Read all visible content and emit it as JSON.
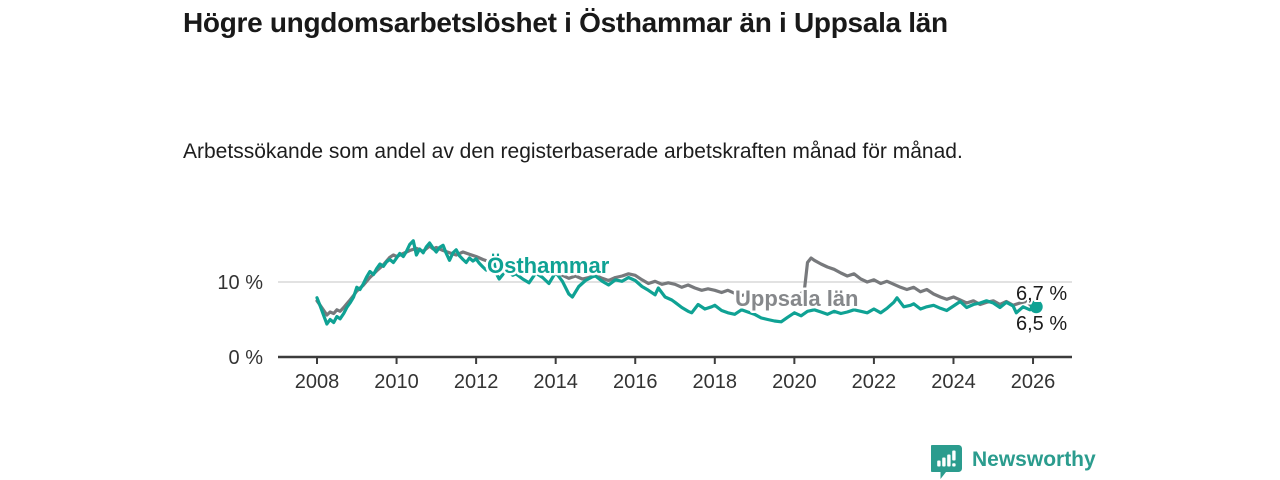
{
  "header": {
    "title": "Högre ungdomsarbetslöshet i Östhammar än i Uppsala län",
    "subtitle": "Arbetssökande som andel av den registerbaserade arbetskraften månad för månad."
  },
  "branding": {
    "logo_text": "Newsworthy",
    "logo_color": "#2b9c8e",
    "logo_icon": "bar-chart-speech-bubble-icon"
  },
  "colors": {
    "focus_series": "#0fa294",
    "reference_series": "#77797c",
    "reference_label": "#86888b",
    "axis": "#3c3c3c",
    "tick_text": "#333333",
    "gridline": "#d9d9d9",
    "end_label_text": "#1b1b1b"
  },
  "chart_data": {
    "type": "line",
    "title": "Högre ungdomsarbetslöshet i Östhammar än i Uppsala län",
    "subtitle": "Arbetssökande som andel av den registerbaserade arbetskraften månad för månad.",
    "x_axis": {
      "ticks": [
        2008,
        2010,
        2012,
        2014,
        2016,
        2018,
        2020,
        2022,
        2024,
        2026
      ],
      "range": [
        2007.0,
        2027.0
      ],
      "unit": "year, monthly data"
    },
    "y_axis": {
      "tick_values": [
        0,
        10
      ],
      "tick_labels": [
        "0 %",
        "10 %"
      ],
      "range": [
        0,
        19
      ],
      "gridlines": [
        10
      ],
      "unit": "%"
    },
    "legend": "inline labels on lines",
    "series": [
      {
        "name": "Östhammar",
        "color": "#0fa294",
        "end_label": "6,7 %",
        "end_value": 6.7,
        "end_dot": true,
        "points": [
          [
            2008.0,
            7.9
          ],
          [
            2008.08,
            6.8
          ],
          [
            2008.17,
            5.5
          ],
          [
            2008.25,
            4.4
          ],
          [
            2008.33,
            5.0
          ],
          [
            2008.42,
            4.6
          ],
          [
            2008.5,
            5.4
          ],
          [
            2008.58,
            5.1
          ],
          [
            2008.67,
            5.8
          ],
          [
            2008.75,
            6.6
          ],
          [
            2008.83,
            7.2
          ],
          [
            2008.92,
            8.0
          ],
          [
            2009.0,
            9.3
          ],
          [
            2009.08,
            9.0
          ],
          [
            2009.17,
            9.8
          ],
          [
            2009.25,
            10.7
          ],
          [
            2009.33,
            11.4
          ],
          [
            2009.42,
            11.0
          ],
          [
            2009.5,
            11.8
          ],
          [
            2009.58,
            12.4
          ],
          [
            2009.67,
            12.1
          ],
          [
            2009.75,
            12.7
          ],
          [
            2009.83,
            13.0
          ],
          [
            2009.92,
            12.6
          ],
          [
            2010.0,
            13.2
          ],
          [
            2010.08,
            13.8
          ],
          [
            2010.17,
            13.4
          ],
          [
            2010.25,
            14.1
          ],
          [
            2010.33,
            15.0
          ],
          [
            2010.42,
            15.5
          ],
          [
            2010.5,
            13.6
          ],
          [
            2010.58,
            14.4
          ],
          [
            2010.67,
            13.9
          ],
          [
            2010.75,
            14.7
          ],
          [
            2010.83,
            15.2
          ],
          [
            2010.92,
            14.5
          ],
          [
            2011.0,
            14.0
          ],
          [
            2011.08,
            14.6
          ],
          [
            2011.17,
            14.9
          ],
          [
            2011.25,
            13.8
          ],
          [
            2011.33,
            12.9
          ],
          [
            2011.42,
            13.9
          ],
          [
            2011.5,
            14.3
          ],
          [
            2011.58,
            13.5
          ],
          [
            2011.67,
            13.0
          ],
          [
            2011.75,
            12.6
          ],
          [
            2011.83,
            13.2
          ],
          [
            2011.92,
            12.8
          ],
          [
            2012.0,
            13.1
          ],
          [
            2012.08,
            12.5
          ],
          [
            2012.17,
            12.0
          ],
          [
            2012.25,
            11.6
          ],
          [
            2012.33,
            12.4
          ],
          [
            2012.42,
            13.5
          ],
          [
            2012.5,
            11.2
          ],
          [
            2012.58,
            10.4
          ],
          [
            2012.67,
            11.0
          ],
          [
            2012.75,
            11.8
          ],
          [
            2012.83,
            11.3
          ],
          [
            2012.92,
            10.9
          ],
          [
            2013.0,
            11.1
          ],
          [
            2013.17,
            10.4
          ],
          [
            2013.33,
            9.9
          ],
          [
            2013.5,
            11.2
          ],
          [
            2013.67,
            10.6
          ],
          [
            2013.83,
            9.8
          ],
          [
            2014.0,
            11.3
          ],
          [
            2014.17,
            10.1
          ],
          [
            2014.33,
            8.4
          ],
          [
            2014.42,
            8.0
          ],
          [
            2014.58,
            9.4
          ],
          [
            2014.75,
            10.2
          ],
          [
            2014.92,
            10.7
          ],
          [
            2015.0,
            10.8
          ],
          [
            2015.17,
            10.1
          ],
          [
            2015.33,
            9.6
          ],
          [
            2015.5,
            10.3
          ],
          [
            2015.67,
            10.1
          ],
          [
            2015.83,
            10.6
          ],
          [
            2016.0,
            10.2
          ],
          [
            2016.17,
            9.4
          ],
          [
            2016.33,
            8.9
          ],
          [
            2016.5,
            8.3
          ],
          [
            2016.58,
            9.2
          ],
          [
            2016.75,
            8.0
          ],
          [
            2016.92,
            7.6
          ],
          [
            2017.0,
            7.3
          ],
          [
            2017.17,
            6.6
          ],
          [
            2017.33,
            6.1
          ],
          [
            2017.42,
            5.9
          ],
          [
            2017.58,
            7.0
          ],
          [
            2017.75,
            6.4
          ],
          [
            2017.92,
            6.7
          ],
          [
            2018.0,
            6.9
          ],
          [
            2018.17,
            6.2
          ],
          [
            2018.33,
            5.9
          ],
          [
            2018.5,
            5.7
          ],
          [
            2018.67,
            6.3
          ],
          [
            2018.83,
            6.0
          ],
          [
            2019.0,
            5.7
          ],
          [
            2019.17,
            5.2
          ],
          [
            2019.33,
            5.0
          ],
          [
            2019.5,
            4.8
          ],
          [
            2019.67,
            4.7
          ],
          [
            2019.83,
            5.3
          ],
          [
            2020.0,
            5.9
          ],
          [
            2020.17,
            5.5
          ],
          [
            2020.33,
            6.1
          ],
          [
            2020.5,
            6.3
          ],
          [
            2020.67,
            6.0
          ],
          [
            2020.83,
            5.7
          ],
          [
            2021.0,
            6.1
          ],
          [
            2021.17,
            5.8
          ],
          [
            2021.33,
            6.0
          ],
          [
            2021.5,
            6.3
          ],
          [
            2021.67,
            6.1
          ],
          [
            2021.83,
            5.9
          ],
          [
            2022.0,
            6.4
          ],
          [
            2022.17,
            5.9
          ],
          [
            2022.33,
            6.5
          ],
          [
            2022.5,
            7.3
          ],
          [
            2022.58,
            7.9
          ],
          [
            2022.75,
            6.7
          ],
          [
            2022.92,
            6.9
          ],
          [
            2023.0,
            7.1
          ],
          [
            2023.17,
            6.4
          ],
          [
            2023.33,
            6.7
          ],
          [
            2023.5,
            6.9
          ],
          [
            2023.67,
            6.5
          ],
          [
            2023.83,
            6.2
          ],
          [
            2024.0,
            6.8
          ],
          [
            2024.17,
            7.4
          ],
          [
            2024.33,
            6.6
          ],
          [
            2024.5,
            7.0
          ],
          [
            2024.67,
            7.2
          ],
          [
            2024.83,
            7.5
          ],
          [
            2025.0,
            7.2
          ],
          [
            2025.17,
            6.6
          ],
          [
            2025.33,
            7.3
          ],
          [
            2025.5,
            6.8
          ],
          [
            2025.58,
            5.9
          ],
          [
            2025.75,
            6.7
          ],
          [
            2025.92,
            6.3
          ],
          [
            2026.08,
            6.7
          ]
        ]
      },
      {
        "name": "Uppsala län",
        "color": "#77797c",
        "end_label": "6,5 %",
        "end_value": 6.5,
        "end_dot": false,
        "points": [
          [
            2008.0,
            7.5
          ],
          [
            2008.08,
            6.9
          ],
          [
            2008.17,
            6.2
          ],
          [
            2008.25,
            5.6
          ],
          [
            2008.33,
            6.0
          ],
          [
            2008.42,
            5.8
          ],
          [
            2008.5,
            6.3
          ],
          [
            2008.58,
            6.1
          ],
          [
            2008.67,
            6.6
          ],
          [
            2008.75,
            7.1
          ],
          [
            2008.83,
            7.6
          ],
          [
            2008.92,
            8.2
          ],
          [
            2009.0,
            8.8
          ],
          [
            2009.17,
            9.6
          ],
          [
            2009.33,
            10.6
          ],
          [
            2009.5,
            11.5
          ],
          [
            2009.67,
            12.3
          ],
          [
            2009.83,
            13.3
          ],
          [
            2009.92,
            13.6
          ],
          [
            2010.0,
            13.4
          ],
          [
            2010.17,
            13.8
          ],
          [
            2010.33,
            14.2
          ],
          [
            2010.5,
            14.5
          ],
          [
            2010.67,
            14.1
          ],
          [
            2010.83,
            14.8
          ],
          [
            2010.92,
            14.4
          ],
          [
            2011.0,
            14.6
          ],
          [
            2011.17,
            14.2
          ],
          [
            2011.33,
            13.9
          ],
          [
            2011.5,
            13.6
          ],
          [
            2011.67,
            14.0
          ],
          [
            2011.83,
            13.7
          ],
          [
            2012.0,
            13.4
          ],
          [
            2012.17,
            13.0
          ],
          [
            2012.33,
            12.7
          ],
          [
            2012.5,
            13.1
          ],
          [
            2012.67,
            12.6
          ],
          [
            2012.83,
            12.2
          ],
          [
            2013.0,
            12.4
          ],
          [
            2013.17,
            11.9
          ],
          [
            2013.33,
            11.5
          ],
          [
            2013.5,
            11.8
          ],
          [
            2013.67,
            11.3
          ],
          [
            2013.83,
            11.1
          ],
          [
            2014.0,
            11.4
          ],
          [
            2014.17,
            10.9
          ],
          [
            2014.33,
            10.5
          ],
          [
            2014.5,
            10.8
          ],
          [
            2014.67,
            10.4
          ],
          [
            2014.83,
            10.6
          ],
          [
            2015.0,
            10.9
          ],
          [
            2015.17,
            10.5
          ],
          [
            2015.33,
            10.2
          ],
          [
            2015.5,
            10.6
          ],
          [
            2015.67,
            10.8
          ],
          [
            2015.83,
            11.1
          ],
          [
            2016.0,
            10.9
          ],
          [
            2016.17,
            10.3
          ],
          [
            2016.33,
            9.8
          ],
          [
            2016.5,
            10.1
          ],
          [
            2016.67,
            9.7
          ],
          [
            2016.83,
            9.9
          ],
          [
            2017.0,
            9.7
          ],
          [
            2017.17,
            9.3
          ],
          [
            2017.33,
            9.6
          ],
          [
            2017.5,
            9.2
          ],
          [
            2017.67,
            8.9
          ],
          [
            2017.83,
            9.1
          ],
          [
            2018.0,
            8.9
          ],
          [
            2018.17,
            8.6
          ],
          [
            2018.33,
            8.9
          ],
          [
            2018.5,
            8.5
          ],
          [
            2018.67,
            8.2
          ],
          [
            2018.83,
            8.4
          ],
          [
            2019.0,
            8.2
          ],
          [
            2019.17,
            7.9
          ],
          [
            2019.33,
            7.6
          ],
          [
            2019.5,
            7.4
          ],
          [
            2019.67,
            7.7
          ],
          [
            2019.83,
            7.9
          ],
          [
            2020.0,
            8.1
          ],
          [
            2020.17,
            8.5
          ],
          [
            2020.25,
            8.8
          ],
          [
            2020.33,
            12.6
          ],
          [
            2020.42,
            13.2
          ],
          [
            2020.5,
            12.9
          ],
          [
            2020.67,
            12.4
          ],
          [
            2020.83,
            12.0
          ],
          [
            2021.0,
            11.7
          ],
          [
            2021.17,
            11.2
          ],
          [
            2021.33,
            10.8
          ],
          [
            2021.5,
            11.1
          ],
          [
            2021.67,
            10.4
          ],
          [
            2021.83,
            10.0
          ],
          [
            2022.0,
            10.3
          ],
          [
            2022.17,
            9.8
          ],
          [
            2022.33,
            10.1
          ],
          [
            2022.5,
            9.7
          ],
          [
            2022.67,
            9.3
          ],
          [
            2022.83,
            9.0
          ],
          [
            2023.0,
            9.3
          ],
          [
            2023.17,
            8.7
          ],
          [
            2023.33,
            9.0
          ],
          [
            2023.5,
            8.4
          ],
          [
            2023.67,
            8.0
          ],
          [
            2023.83,
            7.7
          ],
          [
            2024.0,
            8.0
          ],
          [
            2024.17,
            7.6
          ],
          [
            2024.33,
            7.2
          ],
          [
            2024.5,
            7.5
          ],
          [
            2024.67,
            7.0
          ],
          [
            2024.83,
            7.3
          ],
          [
            2025.0,
            7.5
          ],
          [
            2025.17,
            7.0
          ],
          [
            2025.33,
            7.4
          ],
          [
            2025.5,
            6.9
          ],
          [
            2025.67,
            7.2
          ],
          [
            2025.83,
            7.4
          ],
          [
            2025.92,
            7.0
          ],
          [
            2026.08,
            6.5
          ]
        ]
      }
    ]
  }
}
